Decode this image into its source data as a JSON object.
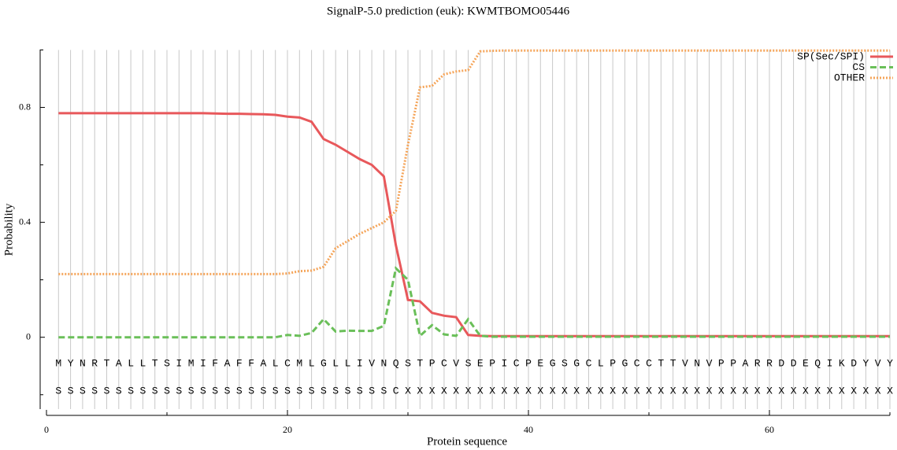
{
  "chart_data": {
    "type": "line",
    "title": "SignalP-5.0 prediction (euk):  KWMTBOMO05446",
    "x_label": "Protein sequence",
    "y_label": "Probability",
    "x": [
      1,
      2,
      3,
      4,
      5,
      6,
      7,
      8,
      9,
      10,
      11,
      12,
      13,
      14,
      15,
      16,
      17,
      18,
      19,
      20,
      21,
      22,
      23,
      24,
      25,
      26,
      27,
      28,
      29,
      30,
      31,
      32,
      33,
      34,
      35,
      36,
      37,
      38,
      39,
      40,
      41,
      42,
      43,
      44,
      45,
      46,
      47,
      48,
      49,
      50,
      51,
      52,
      53,
      54,
      55,
      56,
      57,
      58,
      59,
      60,
      61,
      62,
      63,
      64,
      65,
      66,
      67,
      68,
      69,
      70
    ],
    "sequence": [
      "M",
      "Y",
      "N",
      "R",
      "T",
      "A",
      "L",
      "L",
      "T",
      "S",
      "I",
      "M",
      "I",
      "F",
      "A",
      "F",
      "F",
      "A",
      "L",
      "C",
      "M",
      "L",
      "G",
      "L",
      "L",
      "I",
      "V",
      "N",
      "Q",
      "S",
      "T",
      "P",
      "C",
      "V",
      "S",
      "E",
      "P",
      "I",
      "C",
      "P",
      "E",
      "G",
      "S",
      "G",
      "C",
      "L",
      "P",
      "G",
      "C",
      "C",
      "T",
      "T",
      "V",
      "N",
      "V",
      "P",
      "P",
      "A",
      "R",
      "R",
      "D",
      "D",
      "E",
      "Q",
      "I",
      "K",
      "D",
      "Y",
      "V",
      "Y"
    ],
    "labels": [
      "S",
      "S",
      "S",
      "S",
      "S",
      "S",
      "S",
      "S",
      "S",
      "S",
      "S",
      "S",
      "S",
      "S",
      "S",
      "S",
      "S",
      "S",
      "S",
      "S",
      "S",
      "S",
      "S",
      "S",
      "S",
      "S",
      "S",
      "S",
      "C",
      "X",
      "X",
      "X",
      "X",
      "X",
      "X",
      "X",
      "X",
      "X",
      "X",
      "X",
      "X",
      "X",
      "X",
      "X",
      "X",
      "X",
      "X",
      "X",
      "X",
      "X",
      "X",
      "X",
      "X",
      "X",
      "X",
      "X",
      "X",
      "X",
      "X",
      "X",
      "X",
      "X",
      "X",
      "X",
      "X",
      "X",
      "X",
      "X",
      "X",
      "X"
    ],
    "series": [
      {
        "name": "SP(Sec/SPI)",
        "color": "#e8585b",
        "dash": "solid",
        "values": [
          0.78,
          0.78,
          0.78,
          0.78,
          0.78,
          0.78,
          0.78,
          0.78,
          0.78,
          0.78,
          0.78,
          0.78,
          0.78,
          0.779,
          0.778,
          0.778,
          0.777,
          0.776,
          0.774,
          0.768,
          0.765,
          0.75,
          0.69,
          0.67,
          0.645,
          0.62,
          0.6,
          0.56,
          0.32,
          0.13,
          0.125,
          0.085,
          0.075,
          0.07,
          0.008,
          0.005,
          0.004,
          0.004,
          0.004,
          0.004,
          0.004,
          0.004,
          0.004,
          0.004,
          0.004,
          0.004,
          0.004,
          0.004,
          0.004,
          0.004,
          0.004,
          0.004,
          0.004,
          0.004,
          0.004,
          0.004,
          0.004,
          0.004,
          0.004,
          0.004,
          0.004,
          0.004,
          0.004,
          0.004,
          0.004,
          0.004,
          0.004,
          0.004,
          0.004,
          0.004
        ]
      },
      {
        "name": "CS",
        "color": "#6abf59",
        "dash": "dashed",
        "values": [
          0,
          0,
          0,
          0,
          0,
          0,
          0,
          0,
          0,
          0,
          0,
          0,
          0,
          0,
          0,
          0,
          0,
          0,
          0,
          0.008,
          0.005,
          0.015,
          0.063,
          0.02,
          0.023,
          0.022,
          0.022,
          0.04,
          0.24,
          0.2,
          0.005,
          0.042,
          0.01,
          0.005,
          0.063,
          0.005,
          0.002,
          0.002,
          0.002,
          0.002,
          0.002,
          0.002,
          0.002,
          0.002,
          0.002,
          0.002,
          0.002,
          0.002,
          0.002,
          0.002,
          0.002,
          0.002,
          0.002,
          0.002,
          0.002,
          0.002,
          0.002,
          0.002,
          0.002,
          0.002,
          0.002,
          0.002,
          0.002,
          0.002,
          0.002,
          0.002,
          0.002,
          0.002,
          0.002,
          0.002
        ]
      },
      {
        "name": "OTHER",
        "color": "#f5a55a",
        "dash": "dotted",
        "values": [
          0.22,
          0.22,
          0.22,
          0.22,
          0.22,
          0.22,
          0.22,
          0.22,
          0.22,
          0.22,
          0.22,
          0.22,
          0.22,
          0.22,
          0.22,
          0.22,
          0.22,
          0.22,
          0.22,
          0.222,
          0.23,
          0.232,
          0.245,
          0.31,
          0.335,
          0.36,
          0.38,
          0.4,
          0.44,
          0.67,
          0.87,
          0.875,
          0.915,
          0.925,
          0.93,
          0.995,
          0.997,
          0.998,
          0.998,
          0.998,
          0.998,
          0.998,
          0.998,
          0.998,
          0.998,
          0.998,
          0.998,
          0.998,
          0.998,
          0.998,
          0.998,
          0.998,
          0.998,
          0.998,
          0.998,
          0.998,
          0.998,
          0.998,
          0.998,
          0.998,
          0.998,
          0.998,
          0.998,
          0.998,
          0.998,
          0.998,
          0.998,
          0.998,
          0.998,
          0.998
        ]
      }
    ],
    "xlim": [
      0,
      70
    ],
    "xticks": [
      0,
      20,
      40,
      60
    ],
    "xminor_ticks": [
      10,
      30,
      50,
      70
    ],
    "ylim": [
      -0.25,
      1.0
    ],
    "yticks": [
      0,
      0.4,
      0.8
    ],
    "yminor_ticks": [
      -0.2,
      0.2,
      0.6,
      1.0
    ],
    "grid": true,
    "legend": "upper right"
  }
}
